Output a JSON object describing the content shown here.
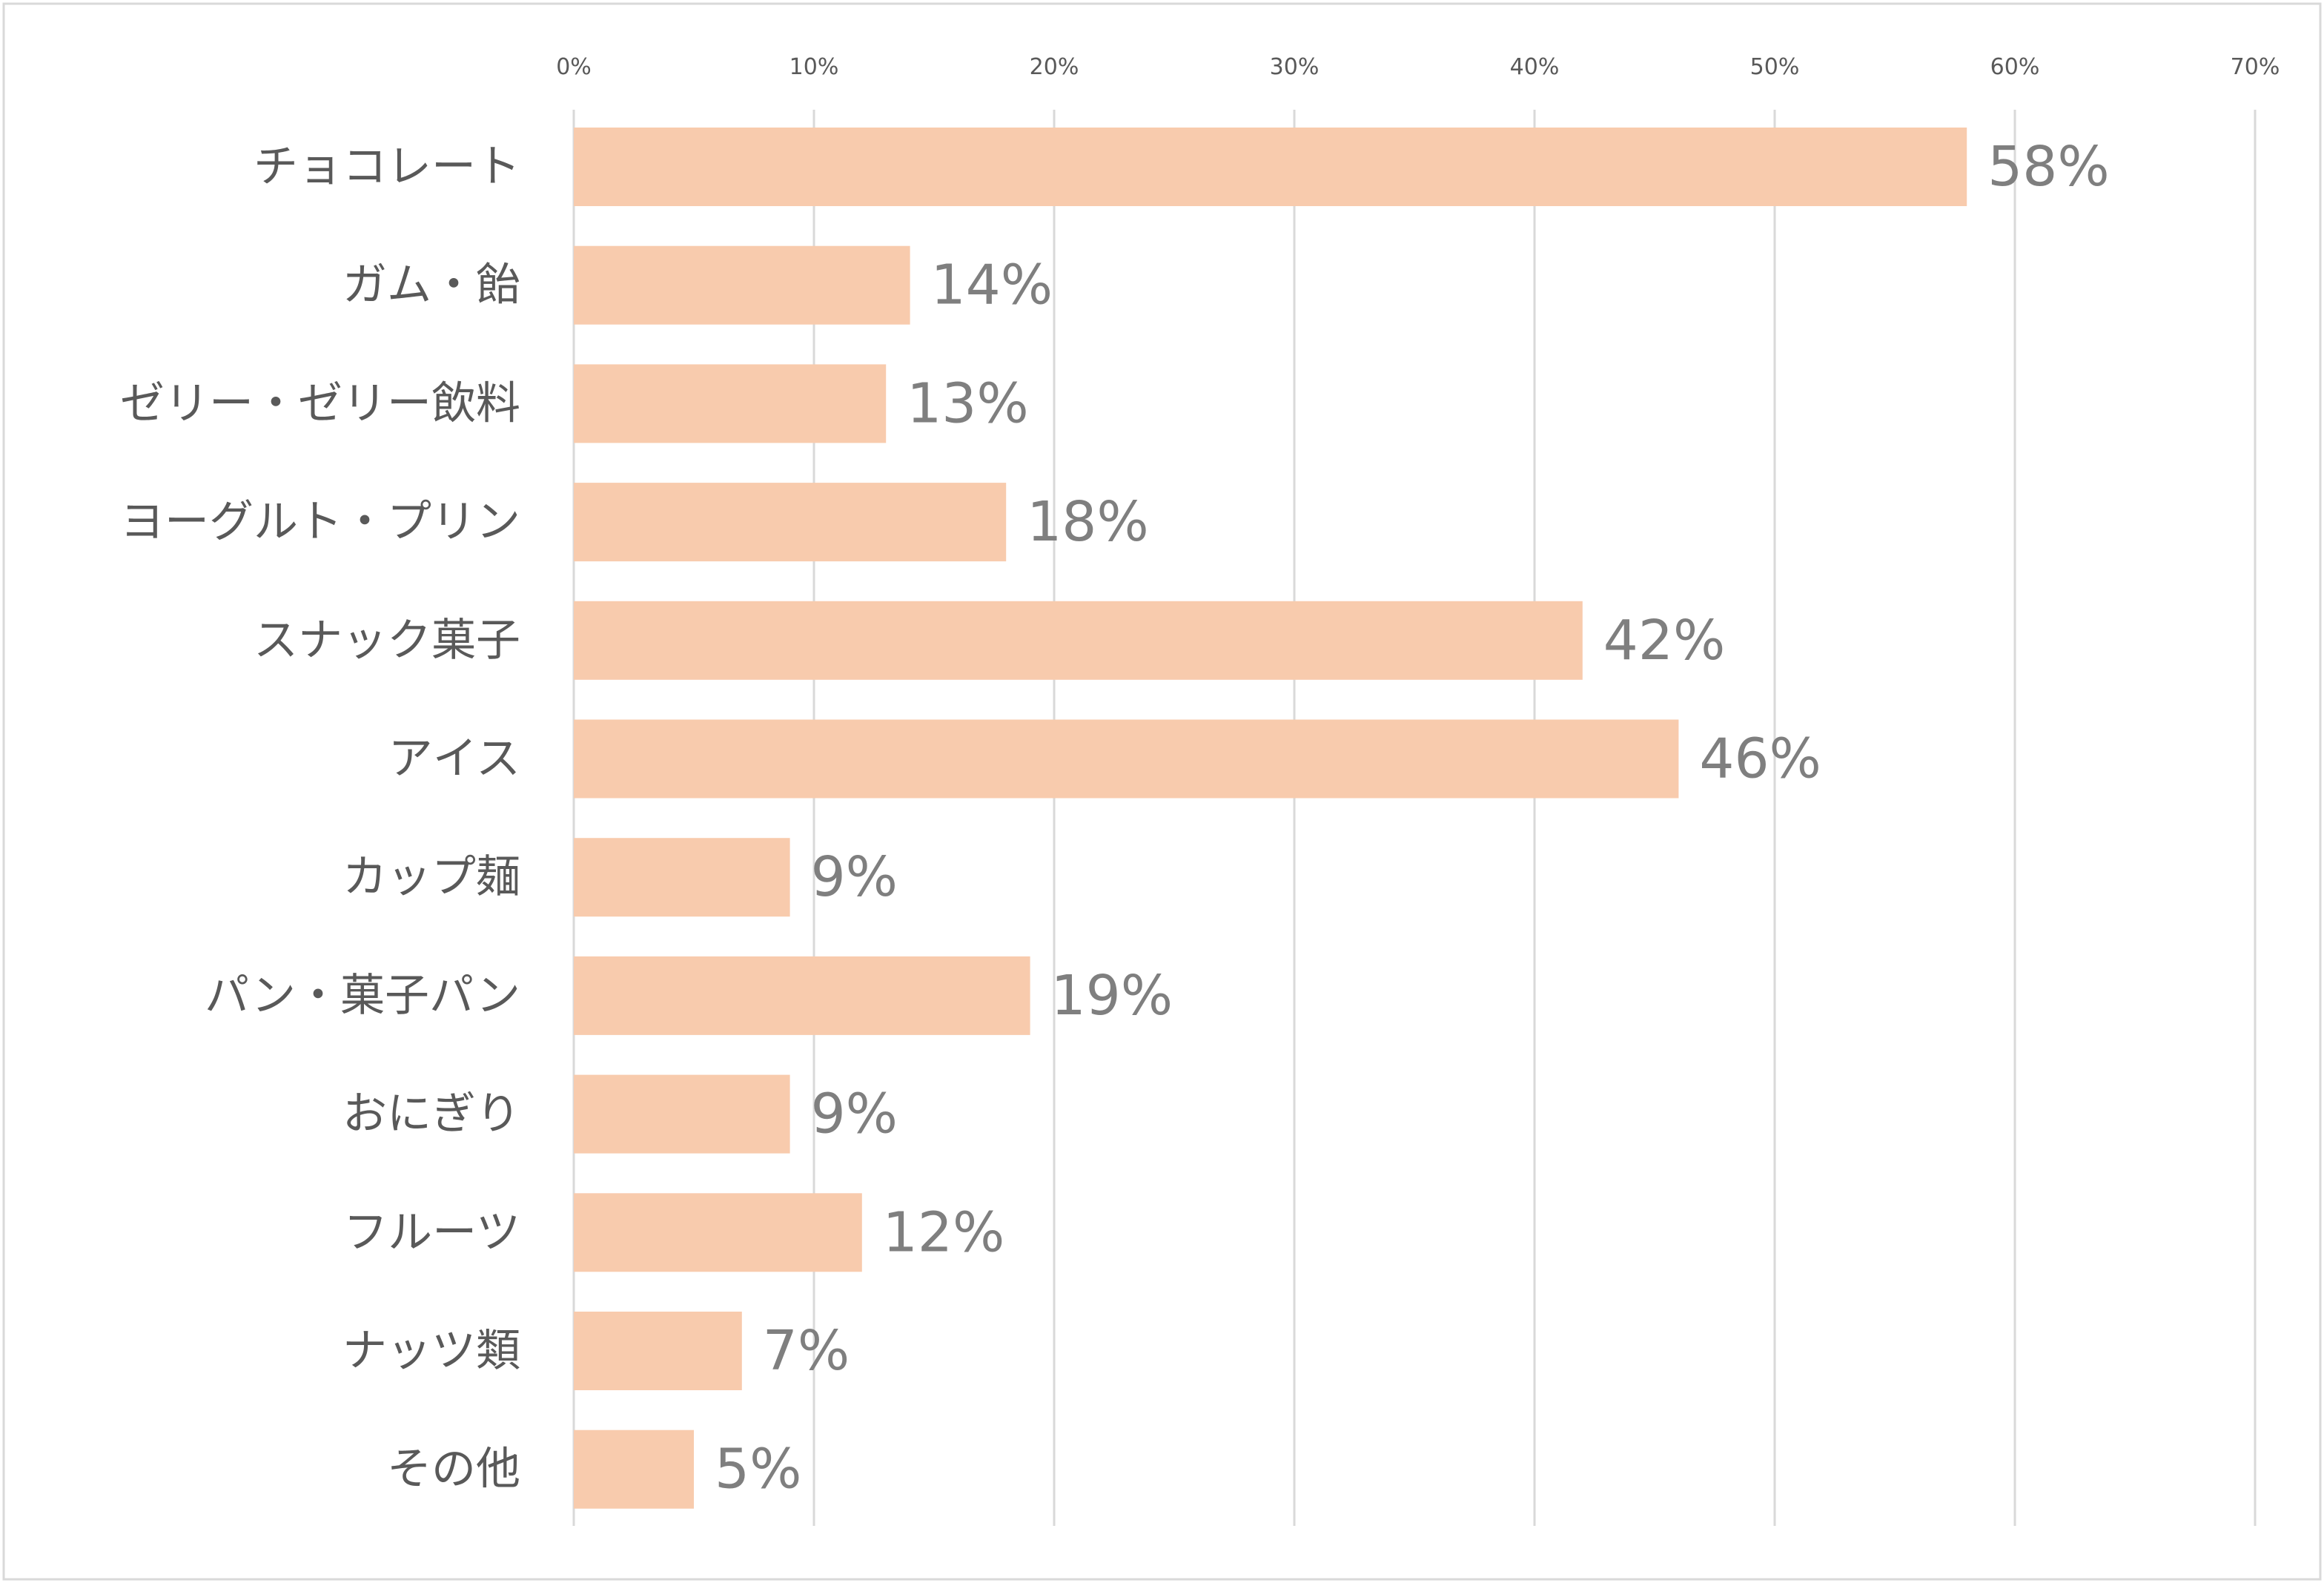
{
  "chart_data": {
    "type": "bar",
    "orientation": "horizontal",
    "categories": [
      "チョコレート",
      "ガム・飴",
      "ゼリー・ゼリー飲料",
      "ヨーグルト・プリン",
      "スナック菓子",
      "アイス",
      "カップ麺",
      "パン・菓子パン",
      "おにぎり",
      "フルーツ",
      "ナッツ類",
      "その他"
    ],
    "values": [
      58,
      14,
      13,
      18,
      42,
      46,
      9,
      19,
      9,
      12,
      7,
      5
    ],
    "data_labels": [
      "58%",
      "14%",
      "13%",
      "18%",
      "42%",
      "46%",
      "9%",
      "19%",
      "9%",
      "12%",
      "7%",
      "5%"
    ],
    "xlim": [
      0,
      70
    ],
    "xticks": [
      0,
      10,
      20,
      30,
      40,
      50,
      60,
      70
    ],
    "xtick_labels": [
      "0%",
      "10%",
      "20%",
      "30%",
      "40%",
      "50%",
      "60%",
      "70%"
    ],
    "axis_position": "top",
    "grid": true,
    "title": "",
    "xlabel": "",
    "ylabel": "",
    "colors": {
      "bar": "#f8cbad",
      "grid": "#d9d9d9",
      "category_text": "#595959",
      "label_text": "#7f7f7f",
      "tick_text": "#595959"
    }
  }
}
